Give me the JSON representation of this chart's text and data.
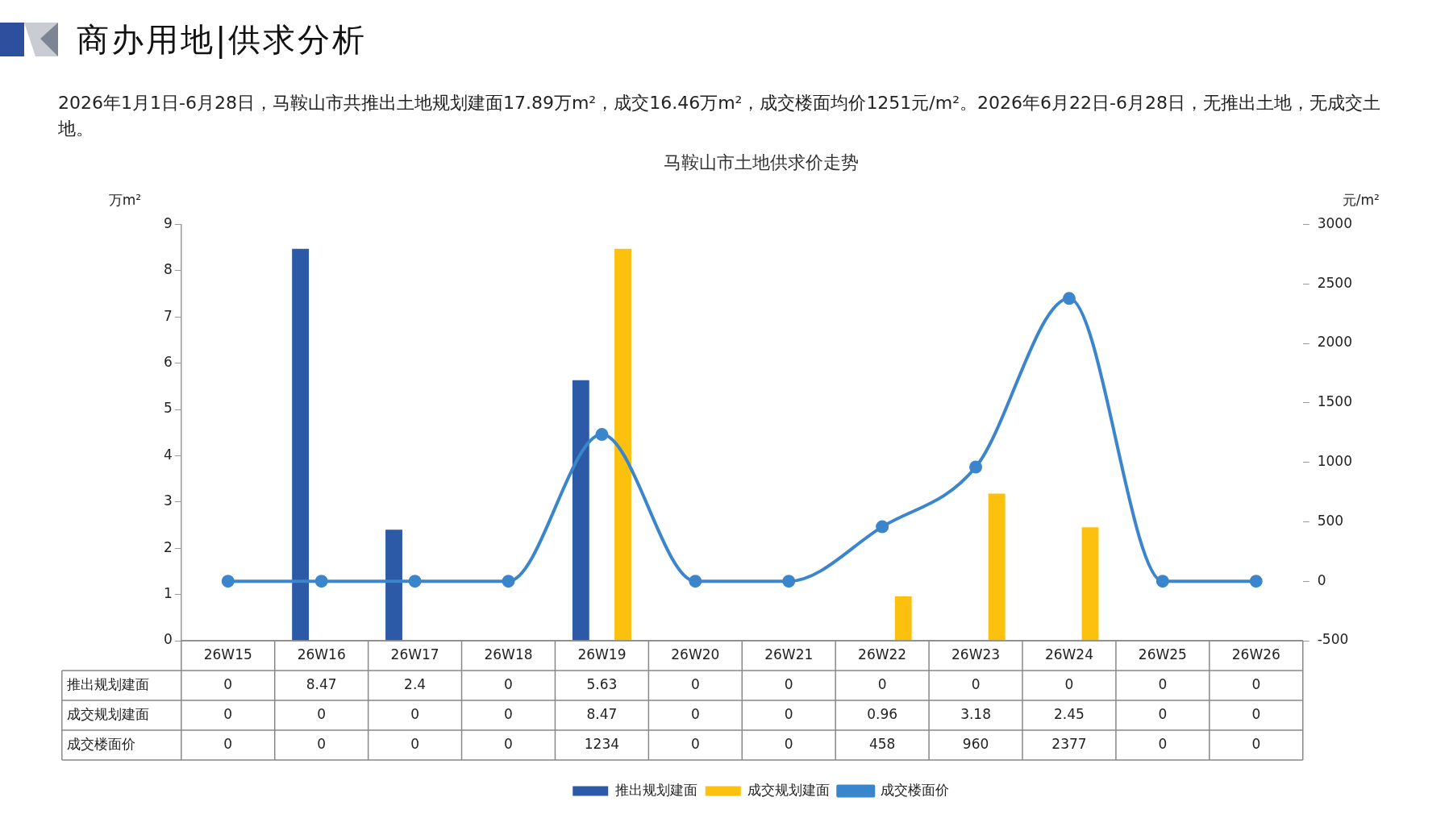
{
  "chart_data": {
    "type": "bar",
    "title": "马鞍山市土地供求价走势",
    "subtitle": "2026年1月1日-6月28日，马鞍山市共推出土地规划建面17.89万m²，成交16.46万m²，成交楼面均价1251元/m²。2026年6月22日-6月28日，无推出土地，无成交土地。",
    "categories": [
      "26W15",
      "26W16",
      "26W17",
      "26W18",
      "26W19",
      "26W20",
      "26W21",
      "26W22",
      "26W23",
      "26W24",
      "26W25",
      "26W26"
    ],
    "series": [
      {
        "name": "推出规划建面",
        "color": "#2d5aa6",
        "values": [
          0,
          8.47,
          2.4,
          0,
          5.63,
          0,
          0,
          0,
          0,
          0,
          0,
          0
        ]
      },
      {
        "name": "成交规划建面",
        "color": "#fcc10f",
        "values": [
          0,
          0,
          0,
          0,
          8.47,
          0,
          0,
          0.96,
          3.18,
          2.45,
          0,
          0
        ]
      },
      {
        "name": "成交楼面价",
        "type": "line",
        "axis": "y2",
        "color": "#3b85cc",
        "values": [
          0,
          0,
          0,
          0,
          1234,
          0,
          0,
          458,
          960,
          2377,
          0,
          0
        ]
      }
    ],
    "ylabel": "万m²",
    "y2label": "元/m²",
    "ylim": [
      0,
      9
    ],
    "yticks": [
      0,
      1,
      2,
      3,
      4,
      5,
      6,
      7,
      8,
      9
    ],
    "y2lim": [
      -500,
      3000
    ],
    "y2ticks": [
      -500,
      0,
      500,
      1000,
      1500,
      2000,
      2500,
      3000
    ],
    "annotations": [
      "商办用地|供求分析"
    ],
    "data_labels": true,
    "legend": "bottom",
    "grid": false,
    "marker": "circle"
  }
}
